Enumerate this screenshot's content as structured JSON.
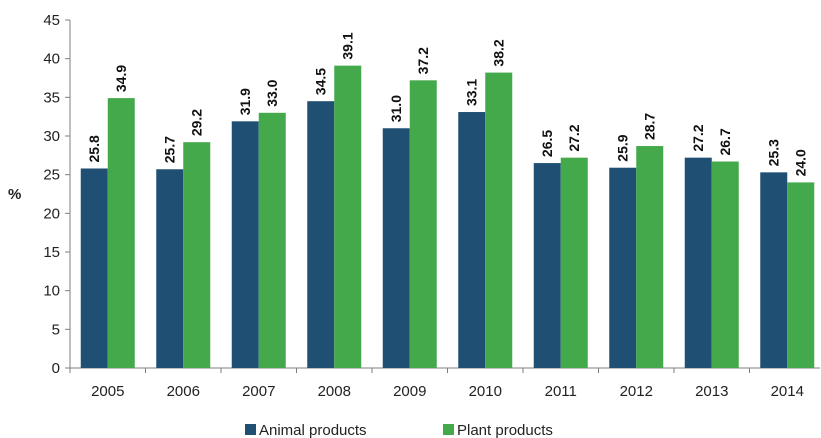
{
  "chart_data": {
    "type": "bar",
    "title": "",
    "xlabel": "",
    "ylabel": "%",
    "ylim": [
      0,
      45
    ],
    "yticks": [
      0,
      5,
      10,
      15,
      20,
      25,
      30,
      35,
      40,
      45
    ],
    "categories": [
      "2005",
      "2006",
      "2007",
      "2008",
      "2009",
      "2010",
      "2011",
      "2012",
      "2013",
      "2014"
    ],
    "series": [
      {
        "name": "Animal  products",
        "color": "#1f5073",
        "values": [
          25.8,
          25.7,
          31.9,
          34.5,
          31.0,
          33.1,
          26.5,
          25.9,
          27.2,
          25.3
        ],
        "labels": [
          "25.8",
          "25.7",
          "31.9",
          "34.5",
          "31.0",
          "33.1",
          "26.5",
          "25.9",
          "27.2",
          "25.3"
        ]
      },
      {
        "name": "Plant products",
        "color": "#43a94b",
        "values": [
          34.9,
          29.2,
          33.0,
          39.1,
          37.2,
          38.2,
          27.2,
          28.7,
          26.7,
          24.0
        ],
        "labels": [
          "34.9",
          "29.2",
          "33.0",
          "39.1",
          "37.2",
          "38.2",
          "27.2",
          "28.7",
          "26.7",
          "24.0"
        ]
      }
    ],
    "grid": false,
    "legend": "bottom-center"
  }
}
